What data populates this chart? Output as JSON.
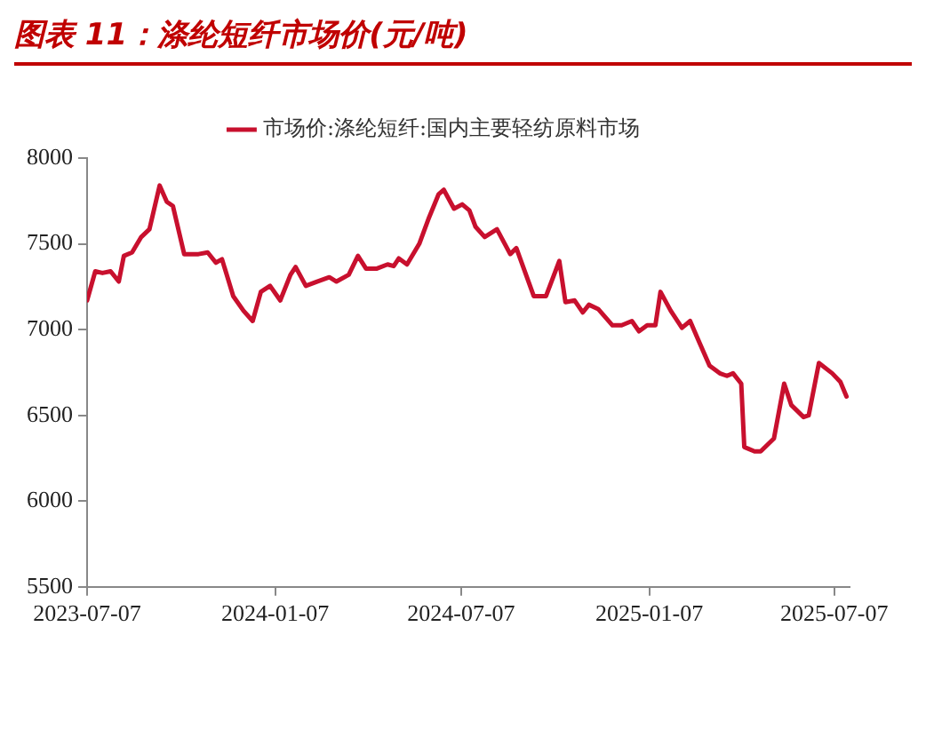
{
  "chart_data": {
    "type": "line",
    "title": "图表 11：涤纶短纤市场价(元/吨)",
    "x": [
      "2023-07-07",
      "2023-07-15",
      "2023-07-22",
      "2023-07-30",
      "2023-08-07",
      "2023-08-12",
      "2023-08-20",
      "2023-08-29",
      "2023-09-06",
      "2023-09-16",
      "2023-09-23",
      "2023-09-29",
      "2023-10-10",
      "2023-10-24",
      "2023-11-02",
      "2023-11-10",
      "2023-11-16",
      "2023-11-27",
      "2023-12-07",
      "2023-12-16",
      "2023-12-24",
      "2024-01-02",
      "2024-01-12",
      "2024-01-22",
      "2024-01-27",
      "2024-02-06",
      "2024-02-17",
      "2024-02-29",
      "2024-03-07",
      "2024-03-19",
      "2024-03-28",
      "2024-04-05",
      "2024-04-15",
      "2024-04-26",
      "2024-05-02",
      "2024-05-07",
      "2024-05-15",
      "2024-05-27",
      "2024-06-05",
      "2024-06-15",
      "2024-06-20",
      "2024-06-30",
      "2024-07-08",
      "2024-07-15",
      "2024-07-21",
      "2024-07-30",
      "2024-08-11",
      "2024-08-24",
      "2024-08-30",
      "2024-09-16",
      "2024-09-28",
      "2024-10-11",
      "2024-10-17",
      "2024-10-26",
      "2024-11-03",
      "2024-11-09",
      "2024-11-18",
      "2024-12-02",
      "2024-12-11",
      "2024-12-21",
      "2024-12-28",
      "2025-01-05",
      "2025-01-13",
      "2025-01-18",
      "2025-01-28",
      "2025-02-08",
      "2025-02-16",
      "2025-02-25",
      "2025-03-07",
      "2025-03-17",
      "2025-03-24",
      "2025-03-30",
      "2025-04-07",
      "2025-04-10",
      "2025-04-20",
      "2025-04-26",
      "2025-05-09",
      "2025-05-19",
      "2025-05-26",
      "2025-06-07",
      "2025-06-12",
      "2025-06-22",
      "2025-07-05",
      "2025-07-13",
      "2025-07-19"
    ],
    "series": [
      {
        "name": "市场价:涤纶短纤:国内主要轻纺原料市场",
        "color": "#c8102e",
        "values": [
          7170,
          7340,
          7330,
          7340,
          7280,
          7430,
          7450,
          7540,
          7585,
          7840,
          7745,
          7720,
          7440,
          7440,
          7450,
          7390,
          7410,
          7195,
          7110,
          7050,
          7220,
          7255,
          7170,
          7320,
          7365,
          7255,
          7280,
          7305,
          7280,
          7320,
          7430,
          7355,
          7355,
          7380,
          7370,
          7415,
          7380,
          7500,
          7645,
          7790,
          7815,
          7705,
          7730,
          7695,
          7600,
          7540,
          7585,
          7440,
          7475,
          7195,
          7195,
          7400,
          7160,
          7170,
          7100,
          7145,
          7120,
          7025,
          7025,
          7050,
          6990,
          7025,
          7025,
          7220,
          7110,
          7010,
          7050,
          6925,
          6790,
          6745,
          6730,
          6745,
          6685,
          6315,
          6290,
          6290,
          6365,
          6685,
          6560,
          6490,
          6500,
          6805,
          6745,
          6695,
          6610
        ]
      }
    ],
    "xlim": [
      "2023-07-07",
      "2025-07-22"
    ],
    "xticks": [
      "2023-07-07",
      "2024-01-07",
      "2024-07-07",
      "2025-01-07",
      "2025-07-07"
    ],
    "ylim": [
      5500,
      8000
    ],
    "yticks": [
      5500,
      6000,
      6500,
      7000,
      7500,
      8000
    ],
    "grid": false,
    "legend": "top",
    "marker": "none",
    "line_style": "solid"
  }
}
